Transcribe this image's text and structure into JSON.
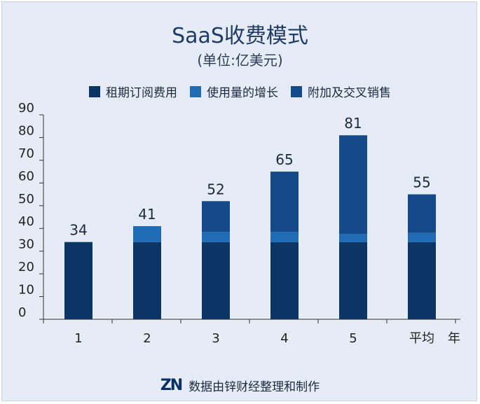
{
  "colors": {
    "background": "#e6ecf5",
    "rental": "#0a3564",
    "usage": "#1f6bb5",
    "addon": "#144a8a",
    "axis": "#333333",
    "title": "#1f3b66"
  },
  "footer": {
    "logo": "ZN",
    "text": "数据由锌财经整理和制作"
  },
  "chart_data": {
    "type": "bar",
    "stacked": true,
    "title": "SaaS收费模式",
    "subtitle": "(单位:亿美元)",
    "xlabel": "年",
    "ylabel": "",
    "categories": [
      "1",
      "2",
      "3",
      "4",
      "5",
      "平均"
    ],
    "ylim": [
      0,
      90
    ],
    "yticks": [
      0,
      10,
      20,
      30,
      40,
      50,
      60,
      70,
      80,
      90
    ],
    "grid": false,
    "legend_position": "top",
    "series": [
      {
        "name": "租期订阅费用",
        "color": "#0a3564",
        "values": [
          34,
          34,
          34,
          34,
          34,
          34
        ]
      },
      {
        "name": "使用量的增长",
        "color": "#1f6bb5",
        "values": [
          0,
          7,
          4.5,
          4.5,
          3.5,
          4
        ]
      },
      {
        "name": "附加及交叉销售",
        "color": "#144a8a",
        "values": [
          0,
          0,
          13.5,
          26.5,
          43.5,
          17
        ]
      }
    ],
    "totals": [
      "34",
      "41",
      "52",
      "65",
      "81",
      "55"
    ]
  }
}
